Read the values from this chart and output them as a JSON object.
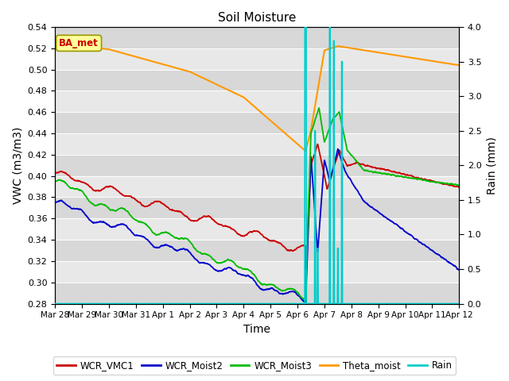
{
  "title": "Soil Moisture",
  "xlabel": "Time",
  "ylabel_left": "VWC (m3/m3)",
  "ylabel_right": "Rain (mm)",
  "ylim_left": [
    0.28,
    0.54
  ],
  "ylim_right": [
    0.0,
    4.0
  ],
  "yticks_left": [
    0.28,
    0.3,
    0.32,
    0.34,
    0.36,
    0.38,
    0.4,
    0.42,
    0.44,
    0.46,
    0.48,
    0.5,
    0.52,
    0.54
  ],
  "yticks_right": [
    0.0,
    0.5,
    1.0,
    1.5,
    2.0,
    2.5,
    3.0,
    3.5,
    4.0
  ],
  "plot_bg_color": "#e8e8e8",
  "legend_label": "BA_met",
  "colors": {
    "WCR_VMC1": "#cc0000",
    "WCR_Moist2": "#0000cc",
    "WCR_Moist3": "#00bb00",
    "Theta_moist": "#ff9900",
    "Rain": "#00cccc"
  },
  "band_colors": [
    "#d8d8d8",
    "#e8e8e8"
  ],
  "annotation_box_color": "#ffff99",
  "annotation_text_color": "#cc0000",
  "tick_labels": [
    "Mar 28",
    "Mar 29",
    "Mar 30",
    "Mar 31",
    "Apr 1",
    "Apr 2",
    "Apr 3",
    "Apr 4",
    "Apr 5",
    "Apr 6",
    "Apr 7",
    "Apr 8",
    "Apr 9",
    "Apr 10",
    "Apr 11",
    "Apr 12"
  ]
}
